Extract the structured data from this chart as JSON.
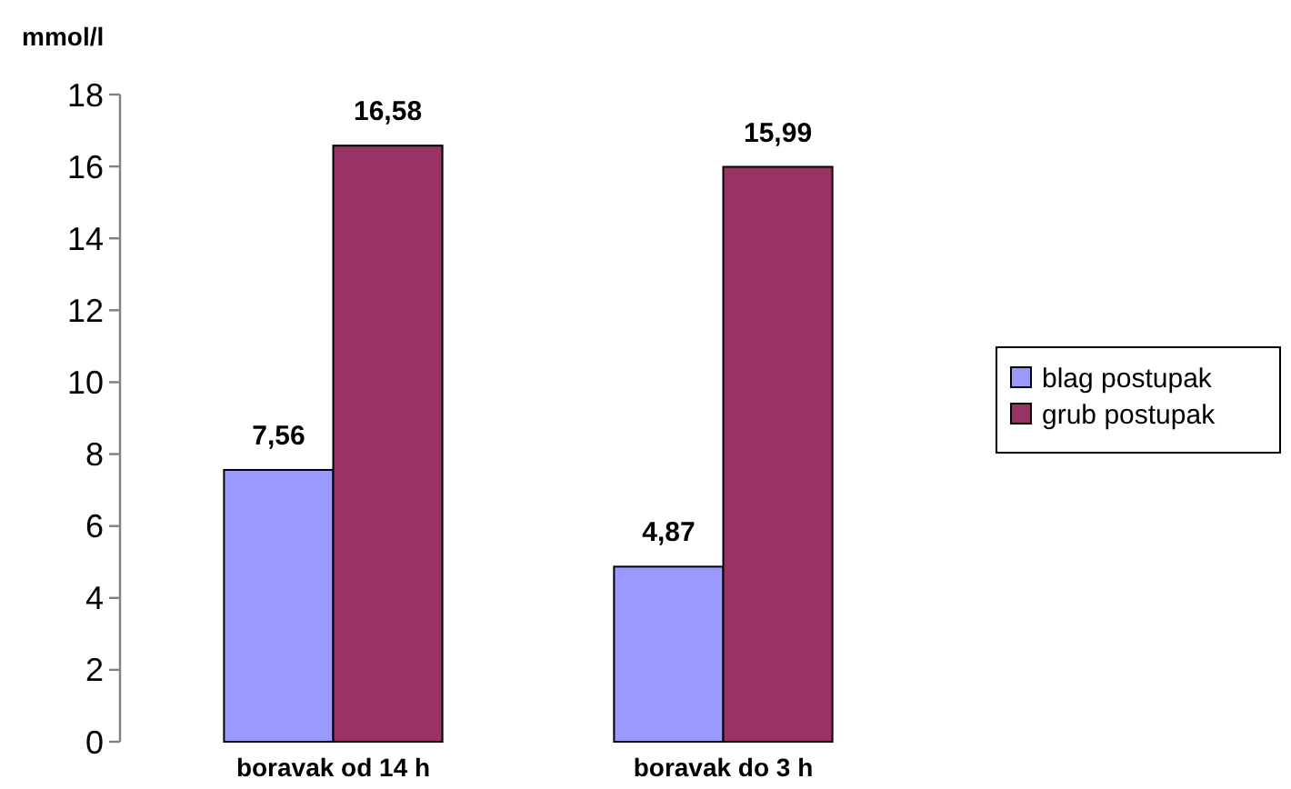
{
  "chart_data": {
    "type": "bar",
    "ylabel": "mmol/l",
    "categories": [
      "boravak od 14 h",
      "boravak do 3 h"
    ],
    "series": [
      {
        "name": "blag postupak",
        "color": "#9999ff",
        "values": [
          7.56,
          4.87
        ],
        "value_labels": [
          "7,56",
          "4,87"
        ]
      },
      {
        "name": "grub postupak",
        "color": "#993366",
        "values": [
          16.58,
          15.99
        ],
        "value_labels": [
          "16,58",
          "15,99"
        ]
      }
    ],
    "ylim": [
      0,
      18
    ],
    "yticks": [
      0,
      2,
      4,
      6,
      8,
      10,
      12,
      14,
      16,
      18
    ],
    "legend": "right"
  }
}
